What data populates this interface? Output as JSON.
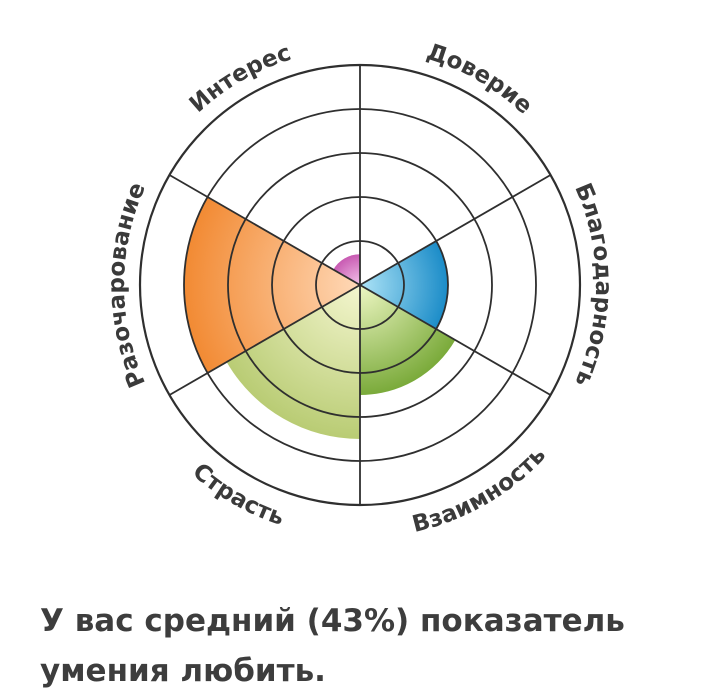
{
  "chart_data": {
    "type": "radial-bar",
    "scale_max": 5,
    "rings": 5,
    "categories": [
      "Доверие",
      "Благодарность",
      "Взаимность",
      "Страсть",
      "Разочарование",
      "Интерес"
    ],
    "values": [
      0,
      2,
      2.5,
      3.5,
      4,
      0.7
    ],
    "colors": [
      "#9ad0e8",
      "#1b8cc8",
      "#7aaa3a",
      "#b9cc74",
      "#f28a33",
      "#c85ab2"
    ],
    "colors_light": [
      "#dff1fa",
      "#aee4f7",
      "#eef7c4",
      "#f4f6cf",
      "#ffd9b8",
      "#f3c4ea"
    ]
  },
  "result": {
    "text": "У вас средний (43%) показатель умения любить."
  }
}
